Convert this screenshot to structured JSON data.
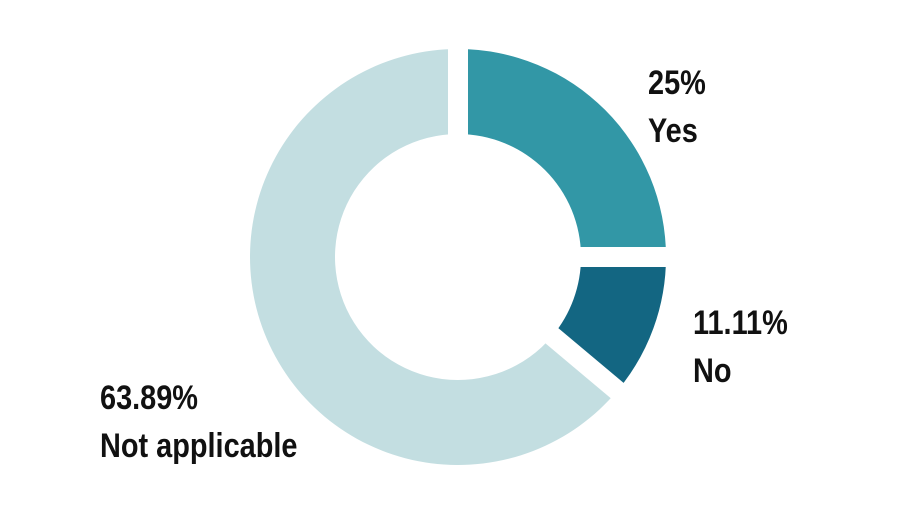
{
  "chart_data": {
    "type": "pie",
    "categories": [
      "Yes",
      "No",
      "Not applicable"
    ],
    "values": [
      25,
      11.11,
      63.89
    ],
    "value_labels": [
      "25%",
      "11.11%",
      "63.89%"
    ],
    "colors": [
      "#3297a6",
      "#136682",
      "#c3dee1"
    ],
    "donut": true
  }
}
